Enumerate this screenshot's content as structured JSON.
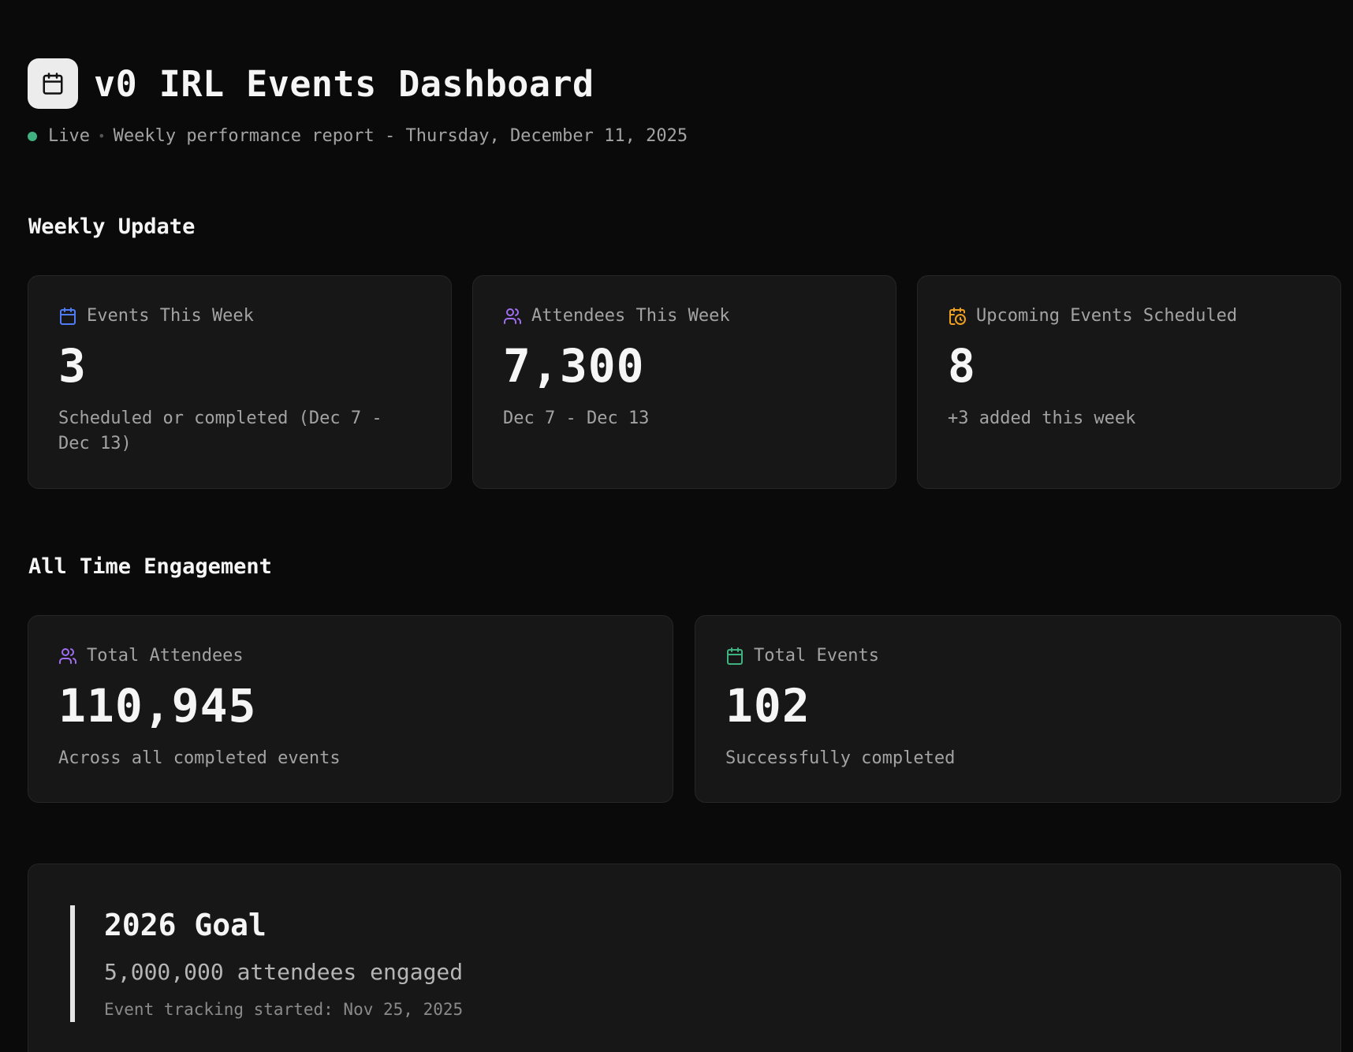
{
  "header": {
    "title": "v0 IRL Events Dashboard",
    "status": "Live",
    "separator": "•",
    "report_label": "Weekly performance report - Thursday, December 11, 2025"
  },
  "colors": {
    "live": "#3fb27f",
    "blue": "#4f7cf5",
    "purple": "#a06ef0",
    "orange": "#f0a020",
    "green": "#3fb27f"
  },
  "weekly": {
    "section_title": "Weekly Update",
    "cards": [
      {
        "label": "Events This Week",
        "value": "3",
        "desc": "Scheduled or completed (Dec 7 - Dec 13)",
        "icon": "calendar-icon"
      },
      {
        "label": "Attendees This Week",
        "value": "7,300",
        "desc": "Dec 7 - Dec 13",
        "icon": "users-icon"
      },
      {
        "label": "Upcoming Events Scheduled",
        "value": "8",
        "desc": "+3 added this week",
        "icon": "calendar-clock-icon"
      }
    ]
  },
  "all_time": {
    "section_title": "All Time Engagement",
    "cards": [
      {
        "label": "Total Attendees",
        "value": "110,945",
        "desc": "Across all completed events",
        "icon": "users-icon"
      },
      {
        "label": "Total Events",
        "value": "102",
        "desc": "Successfully completed",
        "icon": "calendar-icon"
      }
    ]
  },
  "goal": {
    "title": "2026 Goal",
    "target": "5,000,000 attendees engaged",
    "since": "Event tracking started: Nov 25, 2025"
  }
}
